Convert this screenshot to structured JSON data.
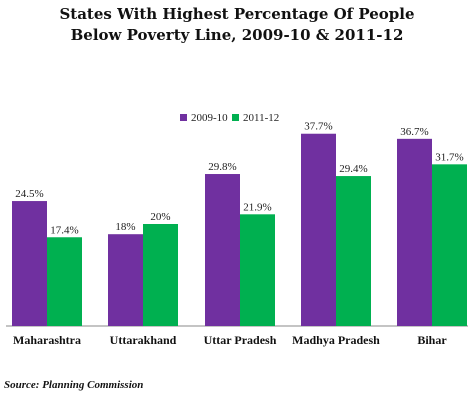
{
  "title_lines": [
    "States With Highest Percentage Of People",
    "Below Poverty Line, 2009-10 & 2011-12"
  ],
  "source": "Source: Planning Commission",
  "chart_data": {
    "type": "bar",
    "title": "States With Highest Percentage Of People Below Poverty Line, 2009-10 & 2011-12",
    "categories": [
      "Maharashtra",
      "Uttarakhand",
      "Uttar Pradesh",
      "Madhya Pradesh",
      "Bihar"
    ],
    "series": [
      {
        "name": "2009-10",
        "color": "#7030a0",
        "values": [
          24.5,
          18,
          29.8,
          37.7,
          36.7
        ],
        "labels": [
          "24.5%",
          "18%",
          "29.8%",
          "37.7%",
          "36.7%"
        ]
      },
      {
        "name": "2011-12",
        "color": "#00b050",
        "values": [
          17.4,
          20,
          21.9,
          29.4,
          31.7
        ],
        "labels": [
          "17.4%",
          "20%",
          "21.9%",
          "29.4%",
          "31.7%"
        ]
      }
    ],
    "ylim": [
      0,
      40
    ],
    "grid": false,
    "legend_position": "top-center",
    "xlabel": "",
    "ylabel": ""
  }
}
